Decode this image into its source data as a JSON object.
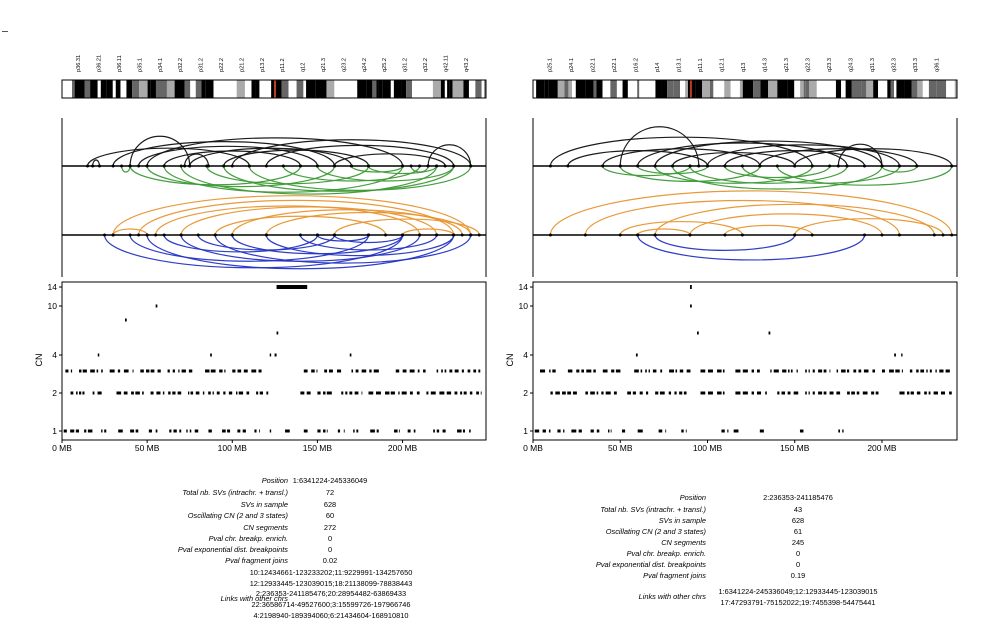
{
  "panels": [
    {
      "chromosome": "1",
      "bands": [
        "p36.31",
        "p36.21",
        "p36.11",
        "p35.1",
        "p34.1",
        "p32.2",
        "p31.2",
        "p22.2",
        "p21.2",
        "p13.2",
        "p11.2",
        "q12",
        "q21.3",
        "q23.2",
        "q24.2",
        "q25.2",
        "q31.2",
        "q32.2",
        "q42.11",
        "q43.2"
      ],
      "chart_data": {
        "type": "scatter",
        "title": "",
        "xlabel": "",
        "ylabel": "CN",
        "x_unit": "MB",
        "x_ticks": [
          "0 MB",
          "50 MB",
          "100 MB",
          "150 MB",
          "200 MB"
        ],
        "x_tick_values": [
          0,
          50,
          100,
          150,
          200
        ],
        "xlim": [
          0,
          249
        ],
        "y_ticks": [
          1,
          2,
          4,
          10,
          14
        ],
        "y_levels_shown": [
          1,
          2,
          3,
          4,
          6,
          10,
          14
        ],
        "segments": [
          {
            "cn": 1,
            "ranges": [
              [
                1,
                10
              ],
              [
                13,
                18
              ],
              [
                23,
                26
              ],
              [
                33,
                36
              ],
              [
                40,
                46
              ],
              [
                51,
                56
              ],
              [
                63,
                70
              ],
              [
                73,
                80
              ],
              [
                86,
                88
              ],
              [
                94,
                99
              ],
              [
                103,
                108
              ],
              [
                113,
                116
              ],
              [
                122,
                123
              ],
              [
                131,
                134
              ],
              [
                142,
                145
              ],
              [
                150,
                156
              ],
              [
                162,
                166
              ],
              [
                171,
                174
              ],
              [
                181,
                186
              ],
              [
                195,
                198
              ],
              [
                203,
                209
              ],
              [
                218,
                226
              ],
              [
                232,
                240
              ]
            ]
          },
          {
            "cn": 2,
            "ranges": [
              [
                5,
                14
              ],
              [
                18,
                24
              ],
              [
                32,
                48
              ],
              [
                52,
                70
              ],
              [
                74,
                96
              ],
              [
                98,
                110
              ],
              [
                114,
                122
              ],
              [
                140,
                146
              ],
              [
                150,
                160
              ],
              [
                164,
                176
              ],
              [
                180,
                210
              ],
              [
                214,
                246
              ]
            ]
          },
          {
            "cn": 3,
            "ranges": [
              [
                2,
                8
              ],
              [
                10,
                24
              ],
              [
                28,
                42
              ],
              [
                46,
                58
              ],
              [
                62,
                78
              ],
              [
                84,
                96
              ],
              [
                100,
                118
              ],
              [
                142,
                150
              ],
              [
                154,
                166
              ],
              [
                170,
                188
              ],
              [
                196,
                214
              ],
              [
                220,
                246
              ]
            ]
          },
          {
            "cn": 4,
            "ranges": [
              [
                21,
                22
              ],
              [
                87,
                88
              ],
              [
                122,
                126
              ],
              [
                169,
                170
              ]
            ]
          },
          {
            "cn": 6,
            "ranges": [
              [
                126,
                127
              ]
            ]
          },
          {
            "cn": 8,
            "ranges": [
              [
                37,
                38
              ]
            ]
          },
          {
            "cn": 10,
            "ranges": [
              [
                55,
                56
              ]
            ]
          },
          {
            "cn": 14,
            "ranges": [
              [
                126,
                144
              ]
            ]
          }
        ],
        "sv_arcs": [
          {
            "group": "top",
            "direction": "up",
            "color": "black",
            "pairs": [
              [
                18,
                22
              ],
              [
                40,
                75
              ],
              [
                72,
                86
              ],
              [
                30,
                160
              ],
              [
                45,
                150
              ],
              [
                60,
                140
              ],
              [
                75,
                170
              ],
              [
                95,
                180
              ],
              [
                50,
                200
              ],
              [
                120,
                230
              ],
              [
                160,
                225
              ],
              [
                215,
                240
              ],
              [
                15,
                110
              ],
              [
                100,
                240
              ]
            ]
          },
          {
            "group": "top",
            "direction": "down",
            "color": "green",
            "pairs": [
              [
                35,
                40
              ],
              [
                40,
                140
              ],
              [
                50,
                160
              ],
              [
                60,
                200
              ],
              [
                70,
                220
              ],
              [
                85,
                180
              ],
              [
                95,
                230
              ],
              [
                110,
                240
              ],
              [
                130,
                210
              ],
              [
                150,
                230
              ],
              [
                170,
                200
              ],
              [
                180,
                220
              ],
              [
                205,
                215
              ]
            ]
          },
          {
            "group": "bottom",
            "direction": "up",
            "color": "orange",
            "pairs": [
              [
                30,
                240
              ],
              [
                45,
                230
              ],
              [
                55,
                210
              ],
              [
                70,
                220
              ],
              [
                90,
                190
              ],
              [
                100,
                235
              ],
              [
                120,
                240
              ],
              [
                160,
                245
              ],
              [
                200,
                230
              ],
              [
                30,
                50
              ]
            ]
          },
          {
            "group": "bottom",
            "direction": "down",
            "color": "blue",
            "pairs": [
              [
                25,
                200
              ],
              [
                40,
                180
              ],
              [
                50,
                230
              ],
              [
                60,
                150
              ],
              [
                70,
                210
              ],
              [
                80,
                160
              ],
              [
                90,
                240
              ],
              [
                100,
                200
              ],
              [
                120,
                230
              ],
              [
                140,
                220
              ],
              [
                150,
                180
              ],
              [
                160,
                200
              ]
            ]
          }
        ]
      },
      "info": {
        "labels": [
          "Position",
          "Total nb. SVs (intrachr. + transl.)",
          "SVs in sample",
          "Oscillating CN (2 and 3 states)",
          "CN segments",
          "Pval chr. breakp. enrich.",
          "Pval exponential dist. breakpoints",
          "Pval fragment joins"
        ],
        "values": [
          "1:6341224-245336049",
          "72",
          "628",
          "60",
          "272",
          "0",
          "0",
          "0.02"
        ],
        "links_label": "Links with other chrs",
        "links": [
          "10:12434661-123233202;11:9229991-134257650",
          "12:12933445-123039015;18:21138099-78838443",
          "2:236353-241185476;20:28954482-63869433",
          "22:36586714-49527600;3:15599726-197966746",
          "4:2198940-189394060;6:21434604-168910810"
        ]
      }
    },
    {
      "chromosome": "2",
      "bands": [
        "p25.1",
        "p24.1",
        "p22.1",
        "p22.1",
        "p16.2",
        "p14",
        "p13.1",
        "p11.1",
        "q12.1",
        "q13",
        "q14.3",
        "q21.3",
        "q22.3",
        "q23.3",
        "q24.3",
        "q31.3",
        "q32.3",
        "q33.3",
        "q36.1"
      ],
      "chart_data": {
        "type": "scatter",
        "title": "",
        "xlabel": "",
        "ylabel": "CN",
        "x_unit": "MB",
        "x_ticks": [
          "0 MB",
          "50 MB",
          "100 MB",
          "150 MB",
          "200 MB"
        ],
        "x_tick_values": [
          0,
          50,
          100,
          150,
          200
        ],
        "xlim": [
          0,
          243
        ],
        "y_ticks": [
          1,
          2,
          4,
          10,
          14
        ],
        "y_levels_shown": [
          1,
          2,
          3,
          4,
          6,
          10,
          14
        ],
        "segments": [
          {
            "cn": 1,
            "ranges": [
              [
                1,
                10
              ],
              [
                14,
                18
              ],
              [
                22,
                28
              ],
              [
                33,
                38
              ],
              [
                43,
                45
              ],
              [
                51,
                54
              ],
              [
                60,
                64
              ],
              [
                72,
                76
              ],
              [
                85,
                88
              ],
              [
                108,
                112
              ],
              [
                115,
                118
              ],
              [
                130,
                134
              ],
              [
                153,
                155
              ],
              [
                175,
                178
              ]
            ]
          },
          {
            "cn": 2,
            "ranges": [
              [
                10,
                26
              ],
              [
                30,
                50
              ],
              [
                54,
                66
              ],
              [
                70,
                88
              ],
              [
                96,
                112
              ],
              [
                116,
                134
              ],
              [
                140,
                152
              ],
              [
                156,
                176
              ],
              [
                180,
                198
              ],
              [
                210,
                240
              ]
            ]
          },
          {
            "cn": 3,
            "ranges": [
              [
                4,
                14
              ],
              [
                20,
                36
              ],
              [
                40,
                52
              ],
              [
                58,
                74
              ],
              [
                78,
                92
              ],
              [
                96,
                110
              ],
              [
                116,
                130
              ],
              [
                136,
                152
              ],
              [
                156,
                170
              ],
              [
                174,
                196
              ],
              [
                200,
                212
              ],
              [
                216,
                240
              ]
            ]
          },
          {
            "cn": 4,
            "ranges": [
              [
                59,
                60
              ],
              [
                207,
                208
              ],
              [
                211,
                212
              ]
            ]
          },
          {
            "cn": 6,
            "ranges": [
              [
                94,
                95
              ],
              [
                135,
                136
              ]
            ]
          },
          {
            "cn": 10,
            "ranges": [
              [
                90,
                91
              ]
            ]
          },
          {
            "cn": 14,
            "ranges": [
              [
                90,
                91
              ]
            ]
          }
        ],
        "sv_arcs": [
          {
            "group": "top",
            "direction": "up",
            "color": "black",
            "pairs": [
              [
                50,
                95
              ],
              [
                40,
                130
              ],
              [
                60,
                180
              ],
              [
                70,
                200
              ],
              [
                80,
                150
              ],
              [
                100,
                210
              ],
              [
                110,
                190
              ],
              [
                130,
                220
              ],
              [
                150,
                240
              ],
              [
                20,
                100
              ],
              [
                10,
                160
              ],
              [
                175,
                200
              ]
            ]
          },
          {
            "group": "top",
            "direction": "down",
            "color": "green",
            "pairs": [
              [
                40,
                90
              ],
              [
                60,
                100
              ],
              [
                70,
                160
              ],
              [
                80,
                200
              ],
              [
                90,
                180
              ],
              [
                110,
                170
              ],
              [
                120,
                210
              ],
              [
                140,
                240
              ],
              [
                200,
                220
              ],
              [
                50,
                130
              ]
            ]
          },
          {
            "group": "bottom",
            "direction": "up",
            "color": "orange",
            "pairs": [
              [
                10,
                240
              ],
              [
                30,
                210
              ],
              [
                50,
                120
              ],
              [
                60,
                90
              ],
              [
                70,
                230
              ],
              [
                90,
                200
              ],
              [
                150,
                235
              ],
              [
                110,
                160
              ]
            ]
          },
          {
            "group": "bottom",
            "direction": "down",
            "color": "blue",
            "pairs": [
              [
                60,
                190
              ],
              [
                70,
                150
              ]
            ]
          }
        ]
      },
      "info": {
        "labels": [
          "Position",
          "Total nb. SVs (intrachr. + transl.)",
          "SVs in sample",
          "Oscillating CN (2 and 3 states)",
          "CN segments",
          "Pval chr. breakp. enrich.",
          "Pval exponential dist. breakpoints",
          "Pval fragment joins"
        ],
        "values": [
          "2:236353-241185476",
          "43",
          "628",
          "61",
          "245",
          "0",
          "0",
          "0.19"
        ],
        "links_label": "Links with other chrs",
        "links": [
          "1:6341224-245336049;12:12933445-123039015",
          "17:47293791-75152022;19:7455398-54475441"
        ]
      }
    }
  ]
}
